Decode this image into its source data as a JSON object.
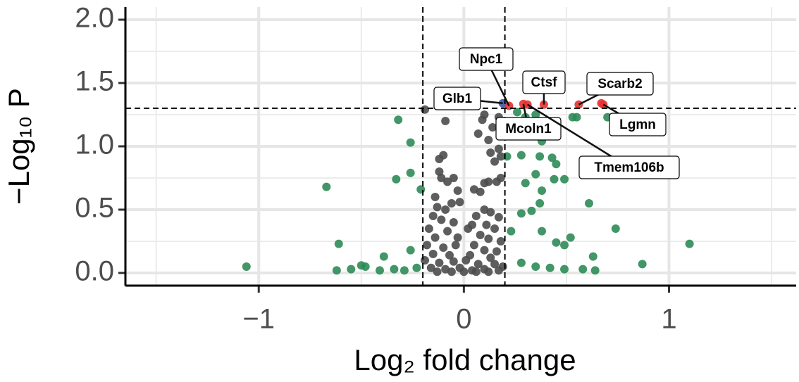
{
  "chart_data": {
    "type": "scatter",
    "x_label": "Log₂ fold change",
    "y_label": "−Log₁₀ P",
    "xlim": [
      -1.65,
      1.62
    ],
    "ylim": [
      -0.1,
      2.1
    ],
    "xticks": [
      {
        "value": -1,
        "label": "−1"
      },
      0,
      1
    ],
    "yticks": [
      {
        "value": 0,
        "label": "0.0"
      },
      {
        "value": 0.5,
        "label": "0.5"
      },
      {
        "value": 1,
        "label": "1.0"
      },
      {
        "value": 1.5,
        "label": "1.5"
      },
      {
        "value": 2,
        "label": "2.0"
      }
    ],
    "x_minor_ticks": [
      -1.5,
      -0.5,
      0.5,
      1.5
    ],
    "y_minor_ticks": [
      0.25,
      0.75,
      1.25,
      1.75
    ],
    "grid": true,
    "fc_cutoffs": [
      -0.2,
      0.2
    ],
    "p_cutoff": 1.301,
    "series": [
      {
        "color": "#4d4d4d",
        "x": [
          -0.19,
          -0.09,
          0.09,
          0.1,
          0.17,
          0.14,
          0.07,
          0.12,
          0.19,
          -0.1,
          -0.12,
          -0.12,
          -0.11,
          -0.08,
          -0.05,
          0.13,
          0.17,
          0.18,
          0.15,
          0.12,
          0.1,
          0.16,
          0.18,
          0.05,
          0.08,
          -0.03,
          -0.14,
          -0.13,
          -0.06,
          -0.09,
          -0.02,
          0.1,
          0.13,
          0.17,
          0.06,
          -0.15,
          -0.11,
          -0.05,
          0.04,
          0.11,
          0.15,
          -0.17,
          -0.08,
          0.02,
          0.08,
          -0.14,
          -0.03,
          0.12,
          0.18,
          -0.18,
          -0.1,
          -0.04,
          0.05,
          0.1,
          0.16,
          -0.15,
          -0.07,
          0.03,
          0.13,
          -0.19,
          -0.12,
          -0.05,
          0.01,
          0.07,
          0.15,
          0.19,
          -0.16,
          -0.09,
          -0.02,
          0.04,
          0.1,
          0.17,
          -0.13,
          0.0,
          0.06,
          -0.06,
          0.12
        ],
        "values": [
          1.29,
          1.2,
          1.21,
          1.25,
          1.23,
          1.15,
          1.1,
          1.05,
          1.2,
          0.93,
          0.9,
          0.8,
          0.75,
          0.72,
          0.75,
          0.95,
          0.98,
          0.92,
          0.88,
          0.72,
          0.71,
          0.72,
          0.75,
          0.66,
          0.64,
          0.65,
          0.6,
          0.52,
          0.55,
          0.5,
          0.56,
          0.5,
          0.48,
          0.44,
          0.45,
          0.45,
          0.42,
          0.4,
          0.38,
          0.38,
          0.35,
          0.35,
          0.33,
          0.35,
          0.3,
          0.28,
          0.28,
          0.27,
          0.25,
          0.22,
          0.2,
          0.22,
          0.22,
          0.18,
          0.17,
          0.15,
          0.14,
          0.14,
          0.12,
          0.1,
          0.08,
          0.09,
          0.1,
          0.07,
          0.07,
          0.05,
          0.04,
          0.03,
          0.04,
          0.02,
          0.03,
          0.02,
          0.01,
          0.01,
          0.01,
          0.01,
          0.01
        ]
      },
      {
        "color": "#2e8b57",
        "x": [
          -1.06,
          -0.67,
          -0.61,
          -0.32,
          -0.26,
          -0.26,
          -0.33,
          -0.21,
          -0.39,
          -0.26,
          -0.62,
          -0.55,
          -0.48,
          -0.41,
          -0.34,
          -0.29,
          -0.23,
          -0.5,
          0.26,
          0.3,
          0.35,
          0.38,
          0.28,
          0.37,
          0.21,
          0.43,
          0.45,
          0.49,
          0.44,
          0.35,
          0.3,
          0.38,
          0.37,
          0.33,
          0.28,
          0.23,
          0.38,
          0.45,
          0.52,
          0.61,
          0.74,
          1.1,
          0.87,
          0.63,
          0.58,
          0.64,
          0.49,
          0.42,
          0.35,
          0.28,
          0.49,
          0.55,
          0.7,
          0.53
        ],
        "values": [
          0.05,
          0.68,
          0.23,
          1.21,
          1.03,
          0.79,
          0.74,
          0.66,
          0.13,
          0.18,
          0.02,
          0.03,
          0.05,
          0.02,
          0.03,
          0.02,
          0.04,
          0.06,
          1.27,
          1.23,
          1.25,
          1.04,
          0.93,
          0.92,
          0.92,
          0.91,
          0.86,
          0.74,
          0.74,
          0.78,
          0.71,
          0.65,
          0.55,
          0.49,
          0.47,
          0.33,
          0.33,
          0.24,
          0.28,
          0.55,
          0.35,
          0.23,
          0.07,
          0.13,
          0.03,
          0.02,
          0.03,
          0.04,
          0.05,
          0.08,
          0.22,
          1.23,
          1.23,
          1.23
        ]
      },
      {
        "color": "#3c5aa6",
        "x": [
          0.19
        ],
        "values": [
          1.34
        ]
      },
      {
        "color": "#e8312f",
        "x": [
          0.22,
          0.29,
          0.31,
          0.39,
          0.56,
          0.67,
          0.68
        ],
        "values": [
          1.32,
          1.335,
          1.33,
          1.33,
          1.33,
          1.34,
          1.33
        ]
      }
    ],
    "annotations": [
      {
        "text": "Npc1",
        "x": 0.22,
        "y": 1.32
      },
      {
        "text": "Ctsf",
        "x": 0.39,
        "y": 1.33
      },
      {
        "text": "Scarb2",
        "x": 0.56,
        "y": 1.33
      },
      {
        "text": "Glb1",
        "x": 0.19,
        "y": 1.34
      },
      {
        "text": "Mcoln1",
        "x": 0.29,
        "y": 1.335
      },
      {
        "text": "Lgmn",
        "x": 0.68,
        "y": 1.33
      },
      {
        "text": "Tmem106b",
        "x": 0.31,
        "y": 1.33
      }
    ]
  }
}
